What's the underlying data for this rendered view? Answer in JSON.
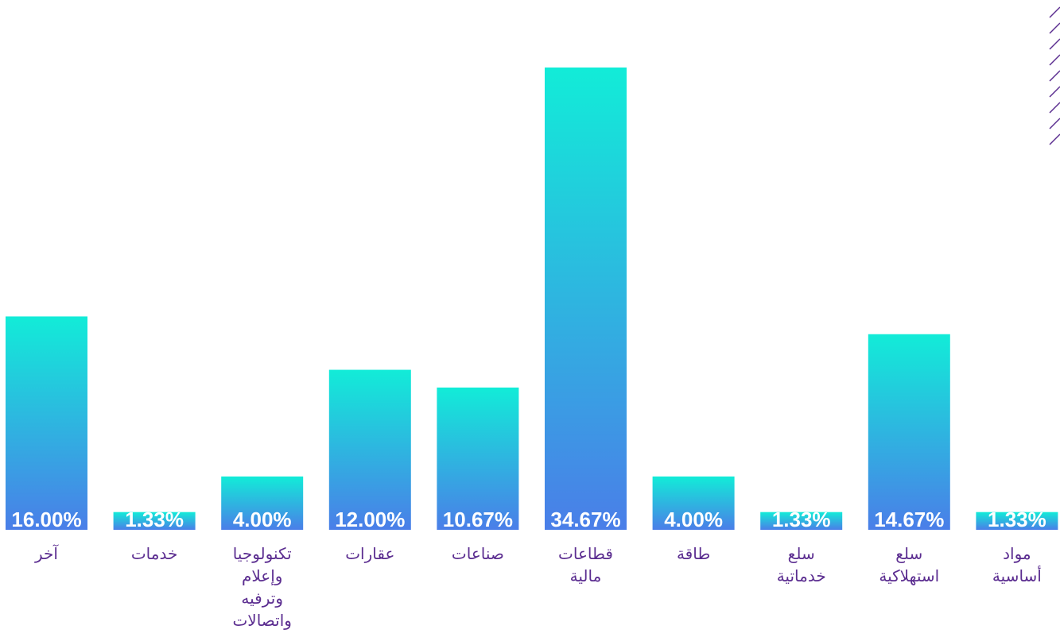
{
  "chart_data": {
    "type": "bar",
    "categories": [
      "آخر",
      "خدمات",
      "تكنولوجيا\nوإعلام\nوترفيه\nواتصالات",
      "عقارات",
      "صناعات",
      "قطاعات\nمالية",
      "طاقة",
      "سلع\nخدماتية",
      "سلع\nاستهلاكية",
      "مواد\nأساسية"
    ],
    "values": [
      16,
      1.33,
      4,
      12,
      10.67,
      34.67,
      4,
      1.33,
      14.67,
      1.33
    ],
    "value_labels": [
      "16.00%",
      "1.33%",
      "4.00%",
      "12.00%",
      "10.67%",
      "34.67%",
      "4.00%",
      "1.33%",
      "14.67%",
      "1.33%"
    ],
    "color": [
      "#12ecd8",
      "#4a7ee8"
    ]
  }
}
